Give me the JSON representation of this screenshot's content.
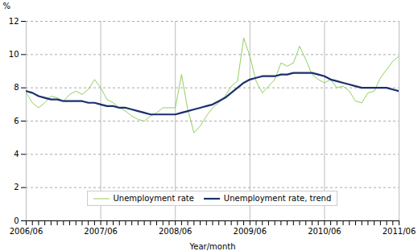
{
  "chart_data": {
    "type": "line",
    "xlabel": "Year/month",
    "ylabel": "%",
    "categories": [
      "2006/06",
      null,
      null,
      null,
      null,
      null,
      null,
      null,
      null,
      null,
      null,
      null,
      "2007/06",
      null,
      null,
      null,
      null,
      null,
      null,
      null,
      null,
      null,
      null,
      null,
      "2008/06",
      null,
      null,
      null,
      null,
      null,
      null,
      null,
      null,
      null,
      null,
      null,
      "2009/06",
      null,
      null,
      null,
      null,
      null,
      null,
      null,
      null,
      null,
      null,
      null,
      "2010/06",
      null,
      null,
      null,
      null,
      null,
      null,
      null,
      null,
      null,
      null,
      null,
      "2011/06"
    ],
    "series": [
      {
        "name": "Unemployment rate",
        "color": "#90d060",
        "values": [
          7.7,
          7.1,
          6.8,
          7.1,
          7.5,
          7.4,
          7.2,
          7.6,
          7.8,
          7.6,
          7.9,
          8.5,
          8.0,
          7.3,
          7.1,
          6.8,
          6.6,
          6.3,
          6.1,
          6.0,
          6.3,
          6.5,
          6.8,
          6.8,
          6.8,
          8.8,
          6.7,
          5.3,
          5.7,
          6.3,
          6.8,
          7.1,
          7.5,
          8.1,
          8.4,
          11.0,
          9.9,
          8.4,
          7.7,
          8.1,
          8.5,
          9.5,
          9.3,
          9.5,
          10.5,
          9.7,
          8.8,
          8.5,
          8.3,
          8.5,
          8.0,
          8.1,
          7.8,
          7.2,
          7.1,
          7.7,
          7.8,
          8.6,
          9.1,
          9.6,
          9.9
        ]
      },
      {
        "name": "Unemployment rate, trend",
        "color": "#1a2f6e",
        "values": [
          7.8,
          7.7,
          7.5,
          7.4,
          7.3,
          7.3,
          7.2,
          7.2,
          7.2,
          7.2,
          7.1,
          7.1,
          7.0,
          6.9,
          6.9,
          6.8,
          6.8,
          6.7,
          6.6,
          6.5,
          6.4,
          6.4,
          6.4,
          6.4,
          6.4,
          6.5,
          6.6,
          6.7,
          6.8,
          6.9,
          7.0,
          7.2,
          7.4,
          7.7,
          8.0,
          8.3,
          8.5,
          8.6,
          8.7,
          8.7,
          8.7,
          8.8,
          8.8,
          8.9,
          8.9,
          8.9,
          8.9,
          8.8,
          8.7,
          8.5,
          8.4,
          8.3,
          8.2,
          8.1,
          8.0,
          8.0,
          8.0,
          8.0,
          8.0,
          7.9,
          7.8
        ]
      }
    ],
    "ylim": [
      0,
      12
    ],
    "yticks": [
      0,
      2,
      4,
      6,
      8,
      10,
      12
    ],
    "grid": true,
    "legend": "lower center"
  }
}
